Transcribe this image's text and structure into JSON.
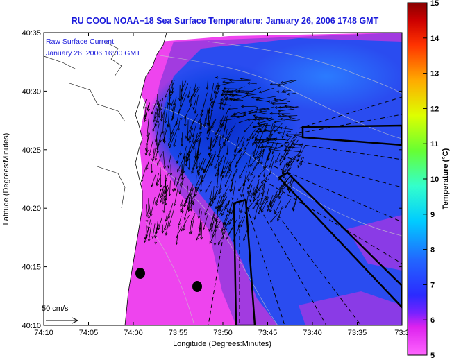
{
  "chart_data": {
    "type": "heatmap",
    "title": "RU COOL  NOAA−18  Sea Surface Temperature:  January 26, 2006 1748 GMT",
    "overlay_label_line1": "Raw Surface Current:",
    "overlay_label_line2": "January 26, 2006 16:00 GMT",
    "xlabel": "Longitude (Degrees:Minutes)",
    "ylabel": "Latitude (Degrees:Minutes)",
    "x_ticks": [
      "74:10",
      "74:05",
      "74:00",
      "73:55",
      "73:50",
      "73:45",
      "73:40",
      "73:35",
      "73:3"
    ],
    "y_ticks": [
      "40:10",
      "40:15",
      "40:20",
      "40:25",
      "40:30",
      "40:35"
    ],
    "colorbar": {
      "label": "Temperature (°C)",
      "range": [
        5,
        15
      ],
      "ticks": [
        "5",
        "6",
        "7",
        "8",
        "9",
        "10",
        "11",
        "12",
        "13",
        "14",
        "15"
      ],
      "colors": [
        "#ff66ff",
        "#dd22ee",
        "#2b2bff",
        "#2266ff",
        "#00ccff",
        "#33ffcc",
        "#66ff33",
        "#ddff00",
        "#ffaa00",
        "#ff3300",
        "#cc0000",
        "#880000"
      ]
    },
    "scale_vector_label": "50 cm/s",
    "grid": false,
    "colors": {
      "land": "#ffffff",
      "warm_water": "#ee44ee",
      "cool_water": "#2255ff",
      "cold_core": "#1144dd",
      "title": "#1a1adb"
    }
  }
}
